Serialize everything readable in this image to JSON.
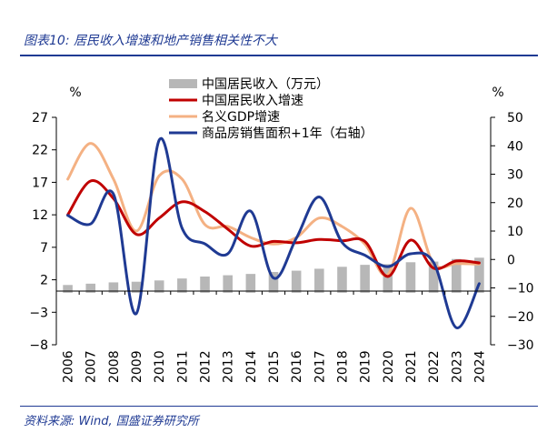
{
  "header": {
    "title": "图表10: 居民收入增速和地产销售相关性不大"
  },
  "footer": {
    "source": "资料来源: Wind, 国盛证券研究所"
  },
  "colors": {
    "brand": "#1f3a93",
    "bar": "#b7b7b7",
    "income_growth": "#c00000",
    "gdp_growth": "#f4b183",
    "sales": "#1f3a93"
  },
  "chart_data": {
    "type": "bar",
    "title": "",
    "left_unit": "%",
    "right_unit": "%",
    "categories": [
      "2006",
      "2007",
      "2008",
      "2009",
      "2010",
      "2011",
      "2012",
      "2013",
      "2014",
      "2015",
      "2016",
      "2017",
      "2018",
      "2019",
      "2020",
      "2021",
      "2022",
      "2023",
      "2024"
    ],
    "y_left": {
      "min": -8,
      "max": 27,
      "ticks": [
        27,
        22,
        17,
        12,
        7,
        2,
        -3,
        -8
      ]
    },
    "y_right": {
      "min": -30,
      "max": 50,
      "ticks": [
        50,
        40,
        30,
        20,
        10,
        0,
        -10,
        -20,
        -30
      ]
    },
    "grid": false,
    "legend_position": "top-right",
    "series": [
      {
        "name": "中国居民收入（万元）",
        "kind": "bar",
        "axis": "left",
        "color": "#b7b7b7",
        "values": [
          1.2,
          1.4,
          1.6,
          1.7,
          1.9,
          2.2,
          2.5,
          2.7,
          2.9,
          3.2,
          3.4,
          3.7,
          4.0,
          4.3,
          4.4,
          4.7,
          4.8,
          5.2,
          5.4
        ]
      },
      {
        "name": "中国居民收入增速",
        "kind": "line",
        "axis": "left",
        "color": "#c00000",
        "values": [
          12.0,
          17.2,
          14.5,
          9.0,
          11.5,
          14.0,
          12.5,
          9.8,
          7.2,
          7.9,
          7.7,
          8.2,
          8.0,
          7.9,
          2.5,
          8.1,
          3.8,
          4.9,
          4.6
        ]
      },
      {
        "name": "名义GDP增速",
        "kind": "line",
        "axis": "left",
        "color": "#f4b183",
        "values": [
          17.5,
          23.0,
          17.5,
          9.5,
          18.0,
          17.5,
          10.5,
          10.2,
          8.5,
          7.5,
          8.5,
          11.5,
          10.2,
          7.5,
          2.8,
          13.0,
          4.5,
          4.5,
          4.4
        ]
      },
      {
        "name": "商品房销售面积+1年（右轴）",
        "kind": "line",
        "axis": "right",
        "color": "#1f3a93",
        "values": [
          15.5,
          12.5,
          23.0,
          -19.0,
          42.0,
          11.0,
          5.5,
          2.0,
          17.0,
          -6.5,
          7.5,
          22.0,
          6.0,
          1.5,
          -2.5,
          2.0,
          -1.0,
          -24.0,
          -8.5
        ]
      }
    ]
  }
}
